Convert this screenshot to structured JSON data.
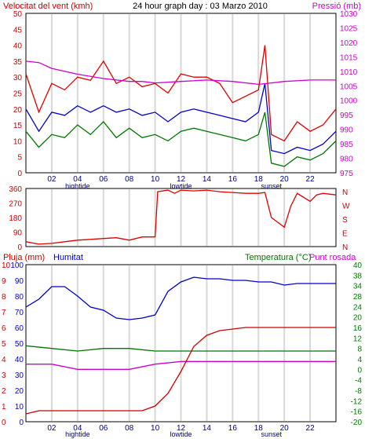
{
  "chart_data": [
    {
      "type": "line",
      "title": "24 hour graph day : 03 Marzo 2010",
      "ylabel_left": "Velocitat del vent (kmh)",
      "ylabel_right": "Pressió (mb)",
      "xlim": [
        0,
        24
      ],
      "ylim_left": [
        0,
        50
      ],
      "ylim_right": [
        975,
        1030
      ],
      "yticks_left": [
        "0",
        "5",
        "10",
        "15",
        "20",
        "25",
        "30",
        "35",
        "40",
        "45",
        "50"
      ],
      "yticks_right": [
        "975",
        "980",
        "985",
        "990",
        "995",
        "1000",
        "1005",
        "1010",
        "1015",
        "1020",
        "1025",
        "1030"
      ],
      "xticks": [
        "02",
        "04",
        "06",
        "08",
        "10",
        "12",
        "14",
        "16",
        "18",
        "20",
        "22"
      ],
      "annotations": [
        "hightide",
        "lowtide",
        "sunset"
      ],
      "series": [
        {
          "color": "#e00000",
          "x": [
            0,
            1,
            2,
            3,
            4,
            5,
            6,
            7,
            8,
            9,
            10,
            11,
            12,
            13,
            14,
            15,
            16,
            17,
            18,
            18.5,
            19,
            20,
            21,
            22,
            23,
            24
          ],
          "y": [
            31,
            19,
            28,
            26,
            30,
            29,
            35,
            28,
            30,
            27,
            28,
            25,
            31,
            30,
            30,
            28,
            22,
            24,
            26,
            40,
            12,
            10,
            16,
            13,
            15,
            20
          ]
        },
        {
          "color": "#0000cc",
          "x": [
            0,
            1,
            2,
            3,
            4,
            5,
            6,
            7,
            8,
            9,
            10,
            11,
            12,
            13,
            14,
            15,
            16,
            17,
            18,
            18.5,
            19,
            20,
            21,
            22,
            23,
            24
          ],
          "y": [
            20,
            13,
            19,
            18,
            21,
            19,
            21,
            19,
            20,
            18,
            19,
            16,
            19,
            20,
            19,
            18,
            17,
            16,
            19,
            28,
            7,
            6,
            8,
            7,
            9,
            13
          ]
        },
        {
          "color": "#007700",
          "x": [
            0,
            1,
            2,
            3,
            4,
            5,
            6,
            7,
            8,
            9,
            10,
            11,
            12,
            13,
            14,
            15,
            16,
            17,
            18,
            18.5,
            19,
            20,
            21,
            22,
            23,
            24
          ],
          "y": [
            13,
            8,
            12,
            11,
            15,
            12,
            16,
            11,
            14,
            11,
            12,
            10,
            13,
            14,
            13,
            12,
            11,
            10,
            12,
            19,
            3,
            2,
            5,
            4,
            6,
            10
          ]
        },
        {
          "color": "#cc00cc",
          "axis": "right",
          "x": [
            0,
            1,
            2,
            4,
            6,
            8,
            9,
            10,
            12,
            14,
            16,
            18,
            19,
            20,
            22,
            24
          ],
          "y": [
            1013.5,
            1013,
            1011,
            1009,
            1007.5,
            1006.5,
            1006.5,
            1006,
            1006.5,
            1007,
            1006.5,
            1005.5,
            1006,
            1006.5,
            1007,
            1007
          ]
        }
      ]
    },
    {
      "type": "line",
      "ylabel_right": [
        "N",
        "W",
        "S",
        "E",
        "N"
      ],
      "ylim": [
        0,
        360
      ],
      "yticks": [
        "0",
        "90",
        "180",
        "270",
        "360"
      ],
      "series": [
        {
          "color": "#e00000",
          "x": [
            0,
            1,
            2,
            3,
            4,
            5,
            6,
            7,
            8,
            9,
            10,
            10.2,
            11,
            11.5,
            12,
            13,
            14,
            15,
            16,
            17,
            18,
            18.5,
            19,
            20,
            20.5,
            21,
            22,
            22.5,
            23,
            24
          ],
          "y": [
            30,
            15,
            20,
            30,
            40,
            45,
            50,
            55,
            40,
            60,
            60,
            340,
            350,
            330,
            350,
            345,
            350,
            340,
            335,
            330,
            330,
            335,
            180,
            120,
            250,
            330,
            280,
            320,
            330,
            320
          ]
        }
      ]
    },
    {
      "type": "line",
      "ylabel_left": "Pluja (mm)",
      "ylabel_left2": "Humitat",
      "ylabel_right": "Temperatura (°C)",
      "ylabel_right2": "Punt rosada",
      "ylim_left": [
        0,
        10
      ],
      "ylim_left2": [
        0,
        100
      ],
      "ylim_right": [
        -20,
        40
      ],
      "yticks_left": [
        "0",
        "1",
        "2",
        "3",
        "4",
        "5",
        "6",
        "7",
        "8",
        "9",
        "10"
      ],
      "yticks_left2": [
        "0",
        "10",
        "20",
        "30",
        "40",
        "50",
        "60",
        "70",
        "80",
        "90",
        "100"
      ],
      "yticks_right": [
        "-20",
        "-16",
        "-12",
        "-8",
        "-4",
        "0",
        "4",
        "8",
        "12",
        "16",
        "20",
        "24",
        "28",
        "34",
        "38",
        "40"
      ],
      "series": [
        {
          "name": "Humitat",
          "color": "#0000cc",
          "x": [
            0,
            1,
            2,
            3,
            4,
            5,
            6,
            7,
            8,
            9,
            10,
            11,
            12,
            13,
            14,
            15,
            16,
            17,
            18,
            19,
            20,
            21,
            22,
            23,
            24
          ],
          "y": [
            73,
            78,
            86,
            86,
            80,
            73,
            71,
            66,
            65,
            66,
            68,
            83,
            89,
            92,
            91,
            91,
            90,
            90,
            89,
            89,
            87,
            88,
            88,
            88,
            88
          ]
        },
        {
          "name": "Temperatura (°C)",
          "color": "#007700",
          "axis": "right",
          "x": [
            0,
            2,
            4,
            6,
            8,
            10,
            12,
            14,
            16,
            18,
            20,
            22,
            24
          ],
          "y": [
            9,
            8,
            7,
            8,
            8,
            7,
            7,
            7,
            7,
            7,
            7,
            7,
            7
          ]
        },
        {
          "name": "Punt rosada",
          "color": "#cc00cc",
          "axis": "right",
          "x": [
            0,
            2,
            4,
            6,
            8,
            10,
            12,
            14,
            16,
            18,
            20,
            22,
            24
          ],
          "y": [
            2,
            2,
            0,
            0,
            0,
            2,
            3,
            3,
            3,
            3,
            3,
            3,
            3
          ]
        },
        {
          "name": "Pluja (mm)",
          "color": "#cc0000",
          "x": [
            0,
            1,
            2,
            4,
            6,
            8,
            9,
            10,
            11,
            12,
            13,
            14,
            15,
            16,
            17,
            18,
            19,
            20,
            21,
            22,
            23,
            24
          ],
          "y": [
            0.5,
            0.7,
            0.7,
            0.7,
            0.7,
            0.7,
            0.7,
            1.0,
            1.8,
            3.2,
            4.8,
            5.5,
            5.8,
            5.9,
            6.0,
            6.0,
            6.0,
            6.0,
            6.0,
            6.0,
            6.0,
            6.0
          ]
        }
      ]
    }
  ]
}
